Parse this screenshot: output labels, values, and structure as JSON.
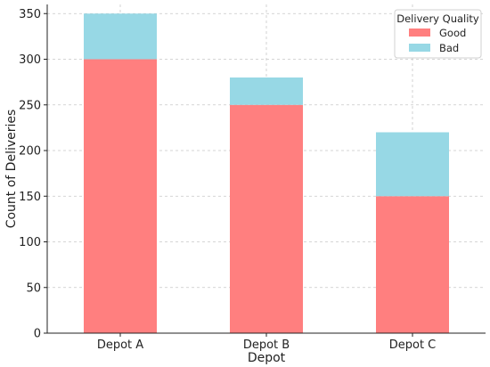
{
  "chart_data": {
    "type": "bar",
    "stacked": true,
    "title": "",
    "xlabel": "Depot",
    "ylabel": "Count of Deliveries",
    "categories": [
      "Depot A",
      "Depot B",
      "Depot C"
    ],
    "series": [
      {
        "name": "Good",
        "values": [
          300,
          250,
          150
        ],
        "color": "#ff7f7f"
      },
      {
        "name": "Bad",
        "values": [
          50,
          30,
          70
        ],
        "color": "#97d8e5"
      }
    ],
    "ylim": [
      0,
      360
    ],
    "yticks": [
      0,
      50,
      100,
      150,
      200,
      250,
      300,
      350
    ],
    "grid": true,
    "legend": {
      "title": "Delivery Quality",
      "placement": "top-right"
    }
  }
}
